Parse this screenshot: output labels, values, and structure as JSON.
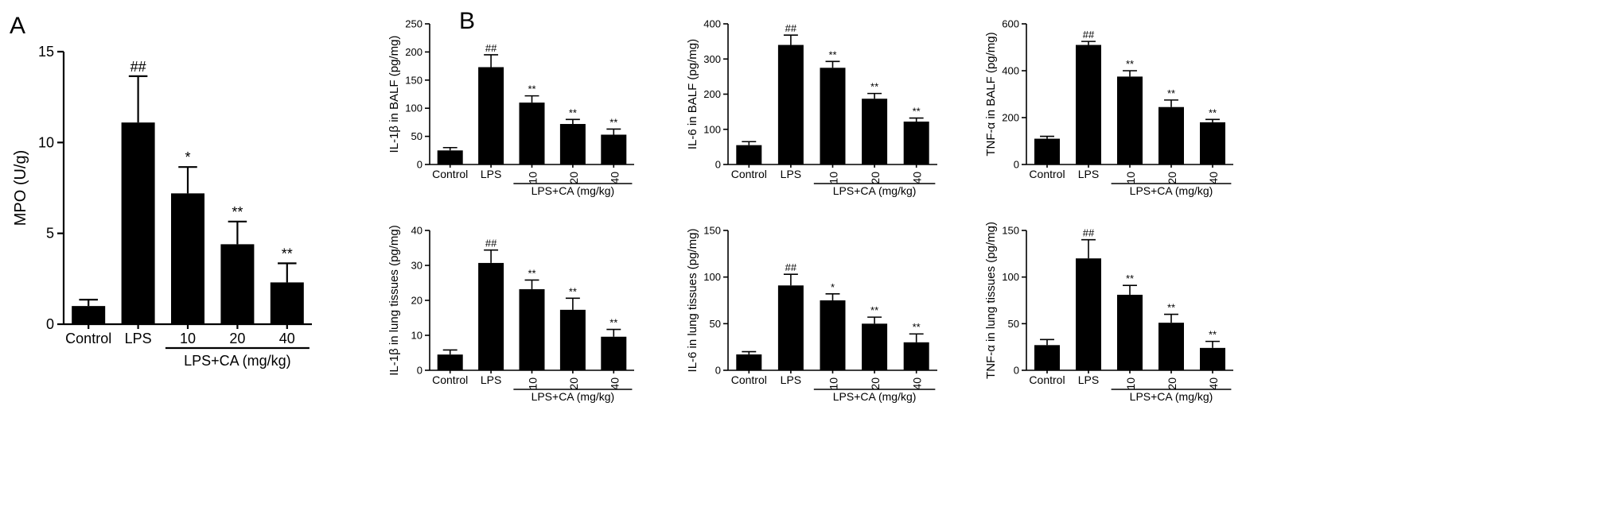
{
  "figure": {
    "panel_labels": [
      "A",
      "B"
    ]
  },
  "chart_data": [
    {
      "id": "A",
      "type": "bar",
      "title": "",
      "xlabel": "",
      "ylabel": "MPO (U/g)",
      "categories": [
        "Control",
        "LPS",
        "10",
        "20",
        "40"
      ],
      "values": [
        1.0,
        11.1,
        7.2,
        4.4,
        2.3
      ],
      "errors": [
        0.35,
        2.55,
        1.45,
        1.25,
        1.05
      ],
      "significance": [
        "",
        "##",
        "*",
        "**",
        "**"
      ],
      "ylim": [
        0,
        15
      ],
      "yticks": [
        0,
        5,
        10,
        15
      ],
      "group_label": "LPS+CA (mg/kg)",
      "group_span": [
        2,
        4
      ],
      "bar_color": "#000000"
    },
    {
      "id": "B1",
      "type": "bar",
      "title": "",
      "xlabel": "",
      "ylabel": "IL-1β  in BALF (pg/mg)",
      "categories": [
        "Control",
        "LPS",
        "10",
        "20",
        "40"
      ],
      "values": [
        25,
        173,
        110,
        72,
        53
      ],
      "errors": [
        5,
        22,
        12,
        8,
        10
      ],
      "significance": [
        "",
        "##",
        "**",
        "**",
        "**"
      ],
      "ylim": [
        0,
        250
      ],
      "yticks": [
        0,
        50,
        100,
        150,
        200,
        250
      ],
      "group_label": "LPS+CA (mg/kg)",
      "group_span": [
        2,
        4
      ],
      "bar_color": "#000000"
    },
    {
      "id": "B2",
      "type": "bar",
      "title": "",
      "xlabel": "",
      "ylabel": "IL-6 in BALF (pg/mg)",
      "categories": [
        "Control",
        "LPS",
        "10",
        "20",
        "40"
      ],
      "values": [
        55,
        340,
        275,
        187,
        122
      ],
      "errors": [
        10,
        28,
        18,
        15,
        10
      ],
      "significance": [
        "",
        "##",
        "**",
        "**",
        "**"
      ],
      "ylim": [
        0,
        400
      ],
      "yticks": [
        0,
        100,
        200,
        300,
        400
      ],
      "group_label": "LPS+CA (mg/kg)",
      "group_span": [
        2,
        4
      ],
      "bar_color": "#000000"
    },
    {
      "id": "B3",
      "type": "bar",
      "title": "",
      "xlabel": "",
      "ylabel": "TNF-α  in BALF (pg/mg)",
      "categories": [
        "Control",
        "LPS",
        "10",
        "20",
        "40"
      ],
      "values": [
        110,
        510,
        375,
        245,
        180
      ],
      "errors": [
        10,
        15,
        25,
        30,
        12
      ],
      "significance": [
        "",
        "##",
        "**",
        "**",
        "**"
      ],
      "ylim": [
        0,
        600
      ],
      "yticks": [
        0,
        200,
        400,
        600
      ],
      "group_label": "LPS+CA (mg/kg)",
      "group_span": [
        2,
        4
      ],
      "bar_color": "#000000"
    },
    {
      "id": "B4",
      "type": "bar",
      "title": "",
      "xlabel": "",
      "ylabel": "IL-1β in lung tissues (pg/mg)",
      "categories": [
        "Control",
        "LPS",
        "10",
        "20",
        "40"
      ],
      "values": [
        4.5,
        30.7,
        23.2,
        17.3,
        9.6
      ],
      "errors": [
        1.3,
        3.7,
        2.6,
        3.3,
        2.1
      ],
      "significance": [
        "",
        "##",
        "**",
        "**",
        "**"
      ],
      "ylim": [
        0,
        40
      ],
      "yticks": [
        0,
        10,
        20,
        30,
        40
      ],
      "group_label": "LPS+CA (mg/kg)",
      "group_span": [
        2,
        4
      ],
      "bar_color": "#000000"
    },
    {
      "id": "B5",
      "type": "bar",
      "title": "",
      "xlabel": "",
      "ylabel": "IL-6 in lung tissues (pg/mg)",
      "categories": [
        "Control",
        "LPS",
        "10",
        "20",
        "40"
      ],
      "values": [
        17,
        91,
        75,
        50,
        30
      ],
      "errors": [
        3,
        12,
        7,
        7,
        9
      ],
      "significance": [
        "",
        "##",
        "*",
        "**",
        "**"
      ],
      "ylim": [
        0,
        150
      ],
      "yticks": [
        0,
        50,
        100,
        150
      ],
      "group_label": "LPS+CA (mg/kg)",
      "group_span": [
        2,
        4
      ],
      "bar_color": "#000000"
    },
    {
      "id": "B6",
      "type": "bar",
      "title": "",
      "xlabel": "",
      "ylabel": "TNF-α in lung tissues (pg/mg)",
      "categories": [
        "Control",
        "LPS",
        "10",
        "20",
        "40"
      ],
      "values": [
        27,
        120,
        81,
        51,
        24
      ],
      "errors": [
        6,
        20,
        10,
        9,
        7
      ],
      "significance": [
        "",
        "##",
        "**",
        "**",
        "**"
      ],
      "ylim": [
        0,
        150
      ],
      "yticks": [
        0,
        50,
        100,
        150
      ],
      "group_label": "LPS+CA (mg/kg)",
      "group_span": [
        2,
        4
      ],
      "bar_color": "#000000"
    }
  ]
}
